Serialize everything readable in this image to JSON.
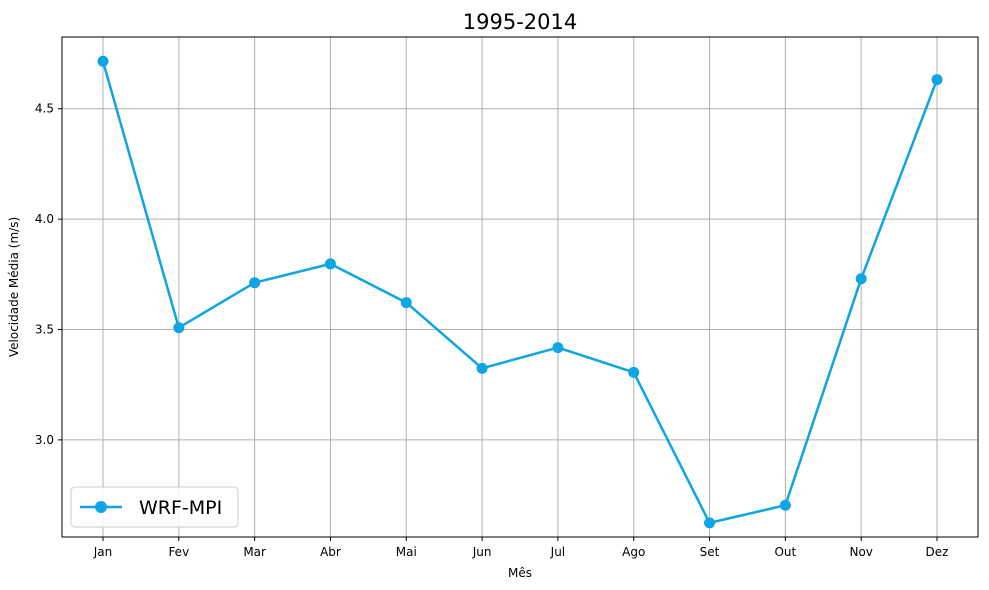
{
  "chart_data": {
    "type": "line",
    "title": "1995-2014",
    "xlabel": "Mês",
    "ylabel": "Velocidade Média (m/s)",
    "categories": [
      "Jan",
      "Fev",
      "Mar",
      "Abr",
      "Mai",
      "Jun",
      "Jul",
      "Ago",
      "Set",
      "Out",
      "Nov",
      "Dez"
    ],
    "series": [
      {
        "name": "WRF-MPI",
        "color": "#0ea5e4",
        "values": [
          4.715,
          3.508,
          3.712,
          3.797,
          3.622,
          3.324,
          3.418,
          3.306,
          2.624,
          2.704,
          3.73,
          4.632
        ]
      }
    ],
    "ylim": [
      2.56,
      4.825
    ],
    "yticks": [
      "3.0",
      "3.5",
      "4.0",
      "4.5"
    ],
    "grid": true,
    "legend_position": "lower-left"
  }
}
